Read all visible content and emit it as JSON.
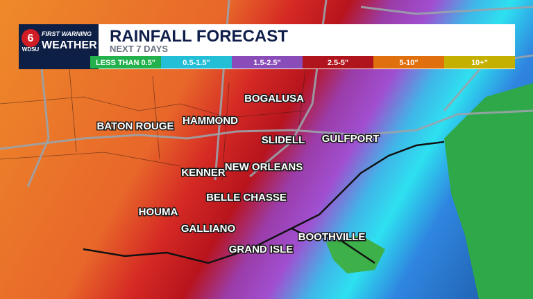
{
  "logo": {
    "channel": "6",
    "brand": "WDSU",
    "line1": "FIRST WARNING",
    "line2": "WEATHER"
  },
  "header": {
    "title": "RAINFALL FORECAST",
    "subtitle": "NEXT 7 DAYS"
  },
  "legend": [
    {
      "label": "LESS THAN 0.5\"",
      "color": "#22b14c"
    },
    {
      "label": "0.5-1.5\"",
      "color": "#22bfd6"
    },
    {
      "label": "1.5-2.5\"",
      "color": "#8a4cb8"
    },
    {
      "label": "2.5-5\"",
      "color": "#b0141c"
    },
    {
      "label": "5-10\"",
      "color": "#e0700e"
    },
    {
      "label": "10+\"",
      "color": "#c4b000"
    }
  ],
  "cities": [
    {
      "label": "BOGALUSA"
    },
    {
      "label": "HAMMOND"
    },
    {
      "label": "BATON ROUGE"
    },
    {
      "label": "SLIDELL"
    },
    {
      "label": "GULFPORT"
    },
    {
      "label": "KENNER"
    },
    {
      "label": "NEW ORLEANS"
    },
    {
      "label": "BELLE CHASSE"
    },
    {
      "label": "HOUMA"
    },
    {
      "label": "GALLIANO"
    },
    {
      "label": "GRAND ISLE"
    },
    {
      "label": "BOOTHVILLE"
    }
  ]
}
